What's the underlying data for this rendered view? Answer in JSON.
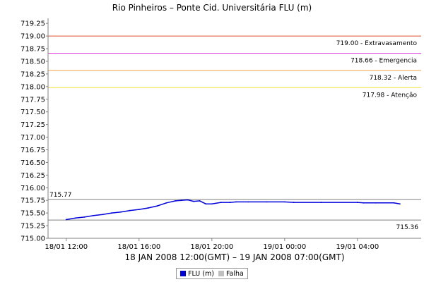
{
  "chart_data": {
    "type": "line",
    "title": "Rio Pinheiros – Ponte Cid. Universitária FLU (m)",
    "xlabel": "18 JAN 2008 12:00(GMT) – 19 JAN 2008 07:00(GMT)",
    "ylabel": "",
    "ylim": [
      715.0,
      719.35
    ],
    "xlim": [
      "2008-01-18 11:00",
      "2008-01-19 07:30"
    ],
    "y_ticks": [
      "715.00",
      "715.25",
      "715.50",
      "715.75",
      "716.00",
      "716.25",
      "716.50",
      "716.75",
      "717.00",
      "717.25",
      "717.50",
      "717.75",
      "718.00",
      "718.25",
      "718.50",
      "718.75",
      "719.00",
      "719.25"
    ],
    "x_ticks": [
      {
        "label": "18/01 12:00",
        "t": "2008-01-18 12:00"
      },
      {
        "label": "18/01 16:00",
        "t": "2008-01-18 16:00"
      },
      {
        "label": "18/01 20:00",
        "t": "2008-01-18 20:00"
      },
      {
        "label": "19/01 00:00",
        "t": "2008-01-19 00:00"
      },
      {
        "label": "19/01 04:00",
        "t": "2008-01-19 04:00"
      }
    ],
    "thresholds": [
      {
        "value": 719.0,
        "label": "719.00 - Extravasamento",
        "color": "#e05030"
      },
      {
        "value": 718.66,
        "label": "718.66 - Emergencia",
        "color": "#e040e0"
      },
      {
        "value": 718.32,
        "label": "718.32 - Alerta",
        "color": "#f0a040"
      },
      {
        "value": 717.98,
        "label": "717.98 - Atenção",
        "color": "#f0e040"
      }
    ],
    "reference_lines": [
      {
        "value": 715.77,
        "label": "715.77",
        "color": "#808080"
      },
      {
        "value": 715.36,
        "label": "715.36",
        "color": "#808080"
      }
    ],
    "series": [
      {
        "name": "FLU (m)",
        "color": "#0000dd",
        "x": [
          "2008-01-18 12:00",
          "2008-01-18 12:30",
          "2008-01-18 13:00",
          "2008-01-18 13:30",
          "2008-01-18 14:00",
          "2008-01-18 14:30",
          "2008-01-18 15:00",
          "2008-01-18 15:30",
          "2008-01-18 16:00",
          "2008-01-18 16:30",
          "2008-01-18 17:00",
          "2008-01-18 17:30",
          "2008-01-18 18:00",
          "2008-01-18 18:20",
          "2008-01-18 18:40",
          "2008-01-18 19:00",
          "2008-01-18 19:20",
          "2008-01-18 19:40",
          "2008-01-18 20:00",
          "2008-01-18 20:30",
          "2008-01-18 21:00",
          "2008-01-18 21:20",
          "2008-01-18 22:00",
          "2008-01-18 23:00",
          "2008-01-19 00:00",
          "2008-01-19 00:30",
          "2008-01-19 02:00",
          "2008-01-19 04:00",
          "2008-01-19 04:20",
          "2008-01-19 05:00",
          "2008-01-19 06:00",
          "2008-01-19 06:20"
        ],
        "values": [
          715.37,
          715.4,
          715.42,
          715.45,
          715.47,
          715.5,
          715.52,
          715.55,
          715.57,
          715.6,
          715.64,
          715.7,
          715.74,
          715.75,
          715.76,
          715.73,
          715.74,
          715.68,
          715.68,
          715.71,
          715.71,
          715.72,
          715.72,
          715.72,
          715.72,
          715.71,
          715.71,
          715.71,
          715.7,
          715.7,
          715.7,
          715.68
        ]
      },
      {
        "name": "Falha",
        "color": "#c0c0c0",
        "x": [],
        "values": []
      }
    ],
    "grid": false,
    "legend": "bottom-center"
  }
}
